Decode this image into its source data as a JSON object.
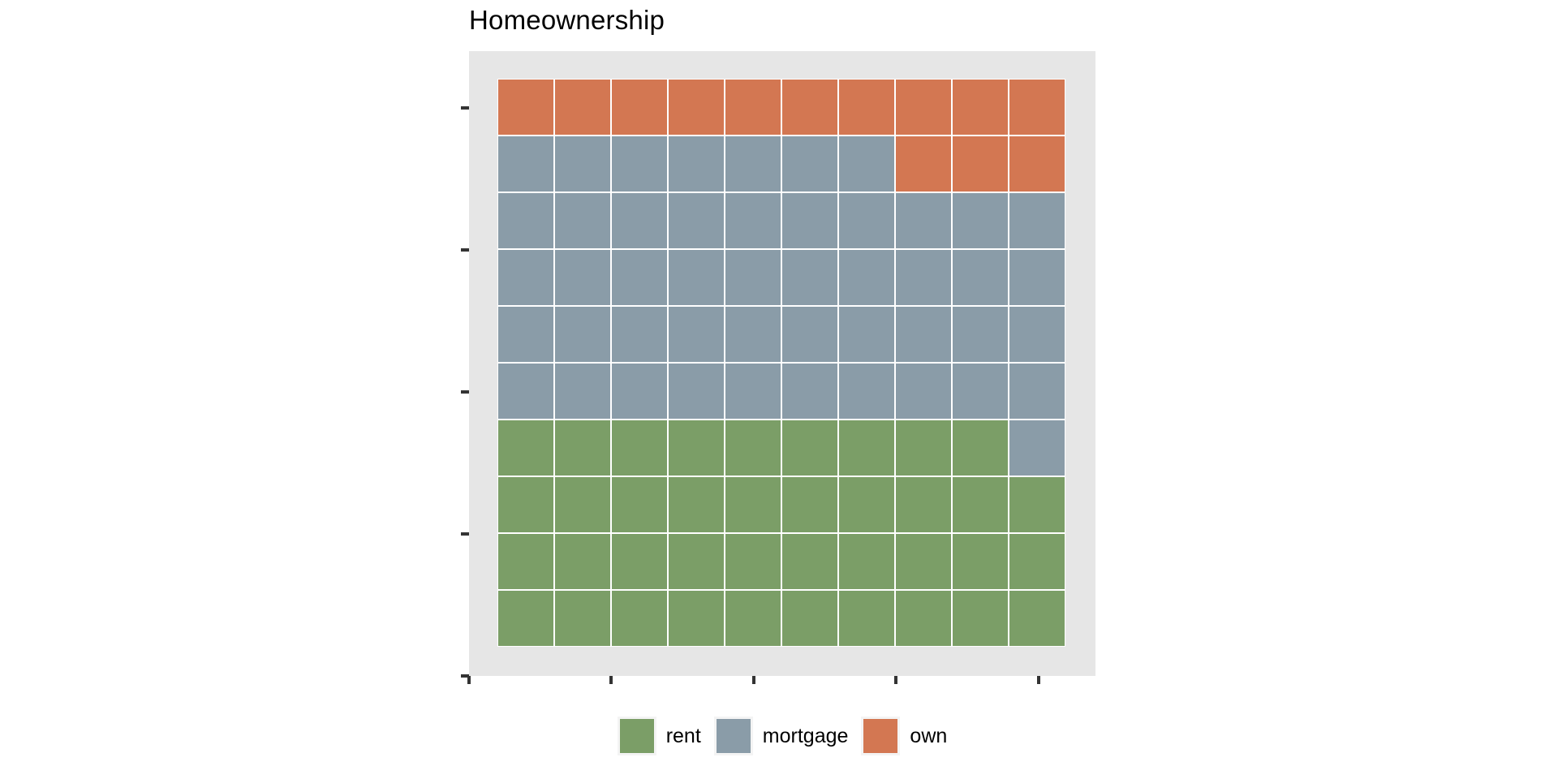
{
  "title": "Homeownership",
  "chart_data": {
    "type": "waffle",
    "title": "Homeownership",
    "grid": {
      "rows": 10,
      "cols": 10,
      "unit_total": 100
    },
    "categories": [
      {
        "name": "rent",
        "count": 39,
        "color": "#7B9E67"
      },
      {
        "name": "mortgage",
        "count": 48,
        "color": "#8A9CA8"
      },
      {
        "name": "own",
        "count": 13,
        "color": "#D37752"
      }
    ],
    "cell_codes": {
      "r": "rent",
      "m": "mortgage",
      "o": "own"
    },
    "rows_top_to_bottom": [
      "oooooooooo",
      "mmmmmmmooo",
      "mmmmmmmmmm",
      "mmmmmmmmmm",
      "mmmmmmmmmm",
      "mmmmmmmmmm",
      "rrrrrrrrrm",
      "rrrrrrrrrr",
      "rrrrrrrrrr",
      "rrrrrrrrrr"
    ],
    "fill_order": "bottom-left, row-major upward",
    "legend": {
      "position": "bottom-center",
      "labels": [
        "rent",
        "mortgage",
        "own"
      ]
    },
    "axes": {
      "x_ticks_units": [
        0,
        2.5,
        5,
        7.5,
        10
      ],
      "y_ticks_units": [
        0,
        2.5,
        5,
        7.5,
        10
      ],
      "axis_range_units": [
        0,
        11
      ],
      "tick_labels_visible": false
    },
    "style": {
      "panel_bg": "#E6E6E6",
      "cell_border": "#FFFFFF",
      "legend_key_bg": "#F4F4F4",
      "tick_color": "#333333",
      "text_color": "#000000"
    }
  }
}
